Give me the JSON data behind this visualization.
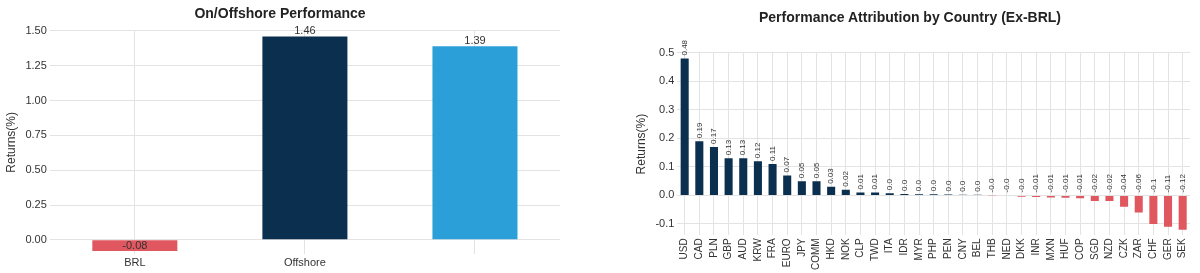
{
  "chart_data": [
    {
      "type": "bar",
      "title": "On/Offshore Performance",
      "ylabel": "Returns(%)",
      "categories": [
        "BRL",
        "Offshore",
        null
      ],
      "values": [
        -0.08,
        1.46,
        1.39
      ],
      "colors": [
        "#e0575f",
        "#0b2f4e",
        "#2a9fd8"
      ],
      "ylim": [
        -0.1,
        1.5
      ],
      "yticks": [
        {
          "value": 0,
          "label": "0.00"
        },
        {
          "value": 0.25,
          "label": "0.25"
        },
        {
          "value": 0.5,
          "label": "0.50"
        },
        {
          "value": 0.75,
          "label": "0.75"
        },
        {
          "value": 1,
          "label": "1.00"
        },
        {
          "value": 1.25,
          "label": "1.25"
        },
        {
          "value": 1.5,
          "label": "1.50"
        }
      ],
      "grid": true,
      "data_labels": true
    },
    {
      "type": "bar",
      "title": "Performance Attribution by Country (Ex-BRL)",
      "ylabel": "Returns(%)",
      "categories": [
        "USD",
        "CAD",
        "PLN",
        "GBP",
        "AUD",
        "KRW",
        "FRA",
        "EURO",
        "JPY",
        "COMM",
        "HKD",
        "NOK",
        "CLP",
        "TWD",
        "ITA",
        "IDR",
        "MYR",
        "PHP",
        "PEN",
        "CNY",
        "BEL",
        "THB",
        "NED",
        "DKK",
        "INR",
        "MXN",
        "HUF",
        "COP",
        "SGD",
        "NZD",
        "CZK",
        "ZAR",
        "CHF",
        "GER",
        "SEK"
      ],
      "values": [
        0.48,
        0.19,
        0.17,
        0.13,
        0.13,
        0.12,
        0.11,
        0.07,
        0.05,
        0.05,
        0.03,
        0.02,
        0.01,
        0.01,
        0.008,
        0.005,
        0.004,
        0.004,
        0.003,
        0.002,
        0.002,
        -0.001,
        -0.002,
        -0.005,
        -0.006,
        -0.007,
        -0.008,
        -0.01,
        -0.02,
        -0.02,
        -0.04,
        -0.06,
        -0.1,
        -0.11,
        -0.12
      ],
      "value_labels": [
        "0.48",
        "0.19",
        "0.17",
        "0.13",
        "0.13",
        "0.12",
        "0.11",
        "0.07",
        "0.05",
        "0.05",
        "0.03",
        "0.02",
        "0.01",
        "0.01",
        "0.0",
        "0.0",
        "0.0",
        "0.0",
        "0.0",
        "0.0",
        "0.0",
        "-0.0",
        "-0.0",
        "-0.0",
        "-0.01",
        "-0.01",
        "-0.01",
        "-0.01",
        "-0.02",
        "-0.02",
        "-0.04",
        "-0.06",
        "-0.1",
        "-0.11",
        "-0.12"
      ],
      "colors": [
        "#0b2f4e",
        "#0b2f4e",
        "#0b2f4e",
        "#0b2f4e",
        "#0b2f4e",
        "#0b2f4e",
        "#0b2f4e",
        "#0b2f4e",
        "#0b2f4e",
        "#0b2f4e",
        "#0b2f4e",
        "#0b2f4e",
        "#0b2f4e",
        "#0b2f4e",
        "#0b2f4e",
        "#0b2f4e",
        "#0b2f4e",
        "#0b2f4e",
        "#0b2f4e",
        "#0b2f4e",
        "#0b2f4e",
        "#e0575f",
        "#e0575f",
        "#e0575f",
        "#e0575f",
        "#e0575f",
        "#e0575f",
        "#e0575f",
        "#e0575f",
        "#e0575f",
        "#e0575f",
        "#e0575f",
        "#e0575f",
        "#e0575f",
        "#e0575f"
      ],
      "ylim": [
        -0.14,
        0.5
      ],
      "yticks": [
        -0.1,
        {
          "value": 0,
          "label": "0.0"
        },
        0.1,
        0.2,
        0.3,
        0.4,
        0.5
      ],
      "grid": true
    }
  ]
}
